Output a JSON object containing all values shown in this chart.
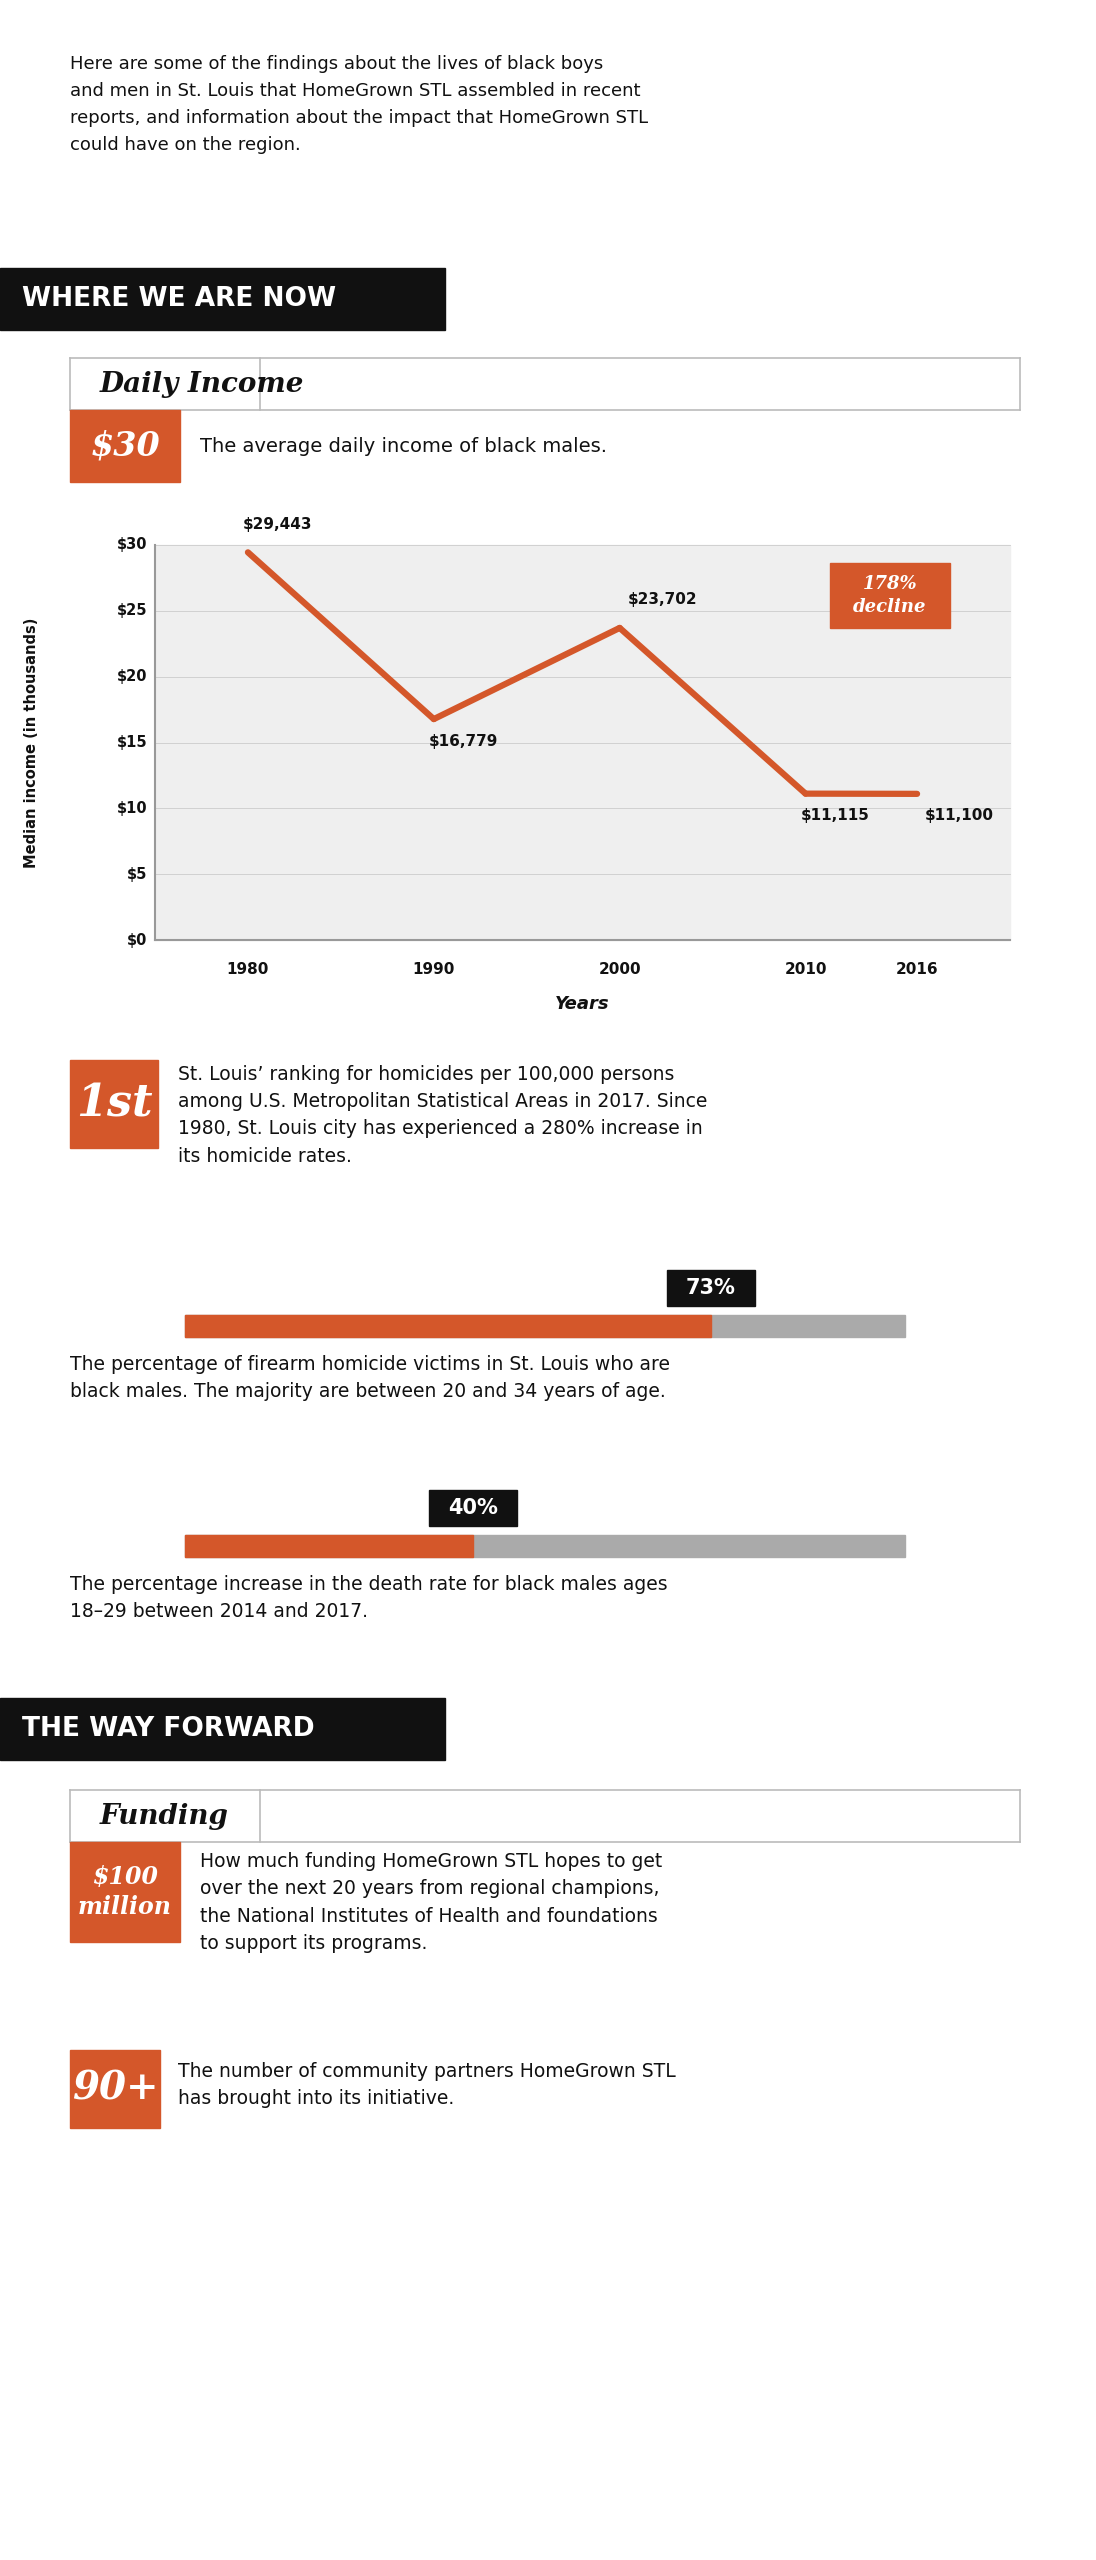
{
  "intro_text": "Here are some of the findings about the lives of black boys\nand men in St. Louis that HomeGrown STL assembled in recent\nreports, and information about the impact that HomeGrown STL\ncould have on the region.",
  "section1_title": "WHERE WE ARE NOW",
  "section2_title": "THE WAY FORWARD",
  "daily_income_title": "Daily Income",
  "daily_income_value": "$30",
  "daily_income_desc": "The average daily income of black males.",
  "chart_years": [
    1980,
    1990,
    2000,
    2010,
    2016
  ],
  "chart_values": [
    29.443,
    16.779,
    23.702,
    11.115,
    11.1
  ],
  "chart_labels": [
    "$29,443",
    "$16,779",
    "$23,702",
    "$11,115",
    "$11,100"
  ],
  "chart_decline_label": "178%\ndecline",
  "chart_ylabel": "Median income (in thousands)",
  "chart_xlabel": "Years",
  "chart_color": "#D95B2A",
  "chart_bg": "#EFEFEF",
  "ranking_value": "1st",
  "ranking_desc": "St. Louis’ ranking for homicides per 100,000 persons\namong U.S. Metropolitan Statistical Areas in 2017. Since\n1980, St. Louis city has experienced a 280% increase in\nits homicide rates.",
  "pct73_value": "73%",
  "pct73_desc": "The percentage of firearm homicide victims in St. Louis who are\nblack males. The majority are between 20 and 34 years of age.",
  "pct40_value": "40%",
  "pct40_desc": "The percentage increase in the death rate for black males ages\n18–29 between 2014 and 2017.",
  "funding_title": "Funding",
  "funding_value": "$100\nmillion",
  "funding_desc": "How much funding HomeGrown STL hopes to get\nover the next 20 years from regional champions,\nthe National Institutes of Health and foundations\nto support its programs.",
  "partners_value": "90+",
  "partners_desc": "The number of community partners HomeGrown STL\nhas brought into its initiative.",
  "orange": "#D4572A",
  "black": "#111111",
  "white": "#FFFFFF",
  "bar_gray": "#AAAAAA"
}
